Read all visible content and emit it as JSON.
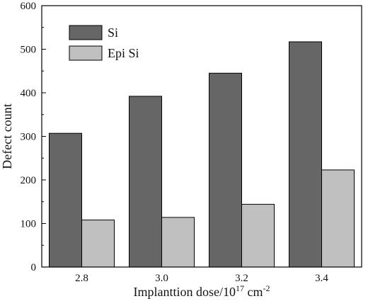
{
  "chart_data": {
    "type": "bar",
    "categories": [
      "2.8",
      "3.0",
      "3.2",
      "3.4"
    ],
    "series": [
      {
        "name": "Si",
        "values": [
          307,
          392,
          445,
          517
        ],
        "color": "#666666"
      },
      {
        "name": "Epi Si",
        "values": [
          108,
          114,
          144,
          223
        ],
        "color": "#c0c0c0"
      }
    ],
    "ylim": [
      0,
      600
    ],
    "yticks": [
      0,
      100,
      200,
      300,
      400,
      500,
      600
    ],
    "ylabel": "Defect count",
    "xlabel_prefix": "Implanttion dose/10",
    "xlabel_exp1": "17",
    "xlabel_unit": " cm",
    "xlabel_exp2": "-2",
    "legend_position": "top-left",
    "grid": false
  }
}
